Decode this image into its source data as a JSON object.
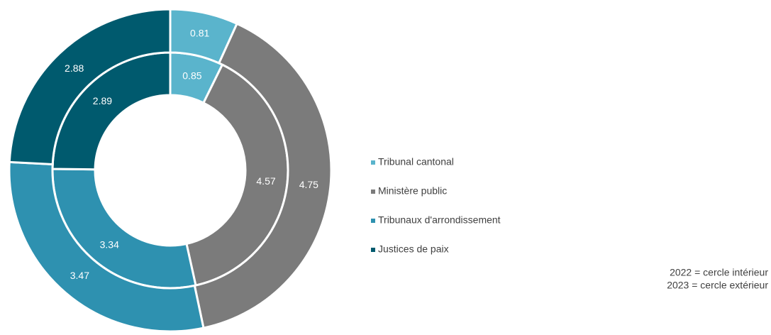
{
  "chart_data": {
    "type": "donut",
    "categories": [
      "Tribunal cantonal",
      "Ministère public",
      "Tribunaux d'arrondissement",
      "Justices de paix"
    ],
    "colors": [
      "#5ab4cc",
      "#7b7b7b",
      "#2e91b0",
      "#005a6e"
    ],
    "series": [
      {
        "values": [
          0.85,
          4.57,
          3.34,
          2.89
        ]
      },
      {
        "values": [
          0.81,
          4.75,
          3.47,
          2.88
        ]
      }
    ],
    "legend": "right",
    "annotations": [
      "2022 = cercle intérieur",
      "2023 = cercle extérieur"
    ]
  }
}
